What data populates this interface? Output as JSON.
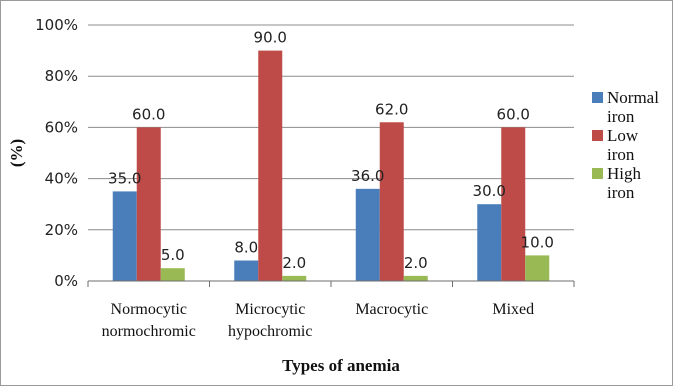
{
  "chart_data": {
    "type": "bar",
    "title": "",
    "xlabel": "Types of anemia",
    "ylabel": "(%)",
    "ylim": [
      0,
      100
    ],
    "yticks": [
      "0%",
      "20%",
      "40%",
      "60%",
      "80%",
      "100%"
    ],
    "ytick_values": [
      0,
      20,
      40,
      60,
      80,
      100
    ],
    "grid": true,
    "legend_position": "right",
    "categories": [
      [
        "Normocytic",
        "normochromic"
      ],
      [
        "Microcytic",
        "hypochromic"
      ],
      [
        "Macrocytic"
      ],
      [
        "Mixed"
      ]
    ],
    "series": [
      {
        "name": [
          "Normal",
          "iron"
        ],
        "color": "#4a7ebb",
        "values": [
          35.0,
          8.0,
          36.0,
          30.0
        ],
        "labels": [
          "35.0",
          "8.0",
          "36.0",
          "30.0"
        ]
      },
      {
        "name": [
          "Low",
          "iron"
        ],
        "color": "#be4b48",
        "values": [
          60.0,
          90.0,
          62.0,
          60.0
        ],
        "labels": [
          "60.0",
          "90.0",
          "62.0",
          "60.0"
        ]
      },
      {
        "name": [
          "High",
          "iron"
        ],
        "color": "#98b954",
        "values": [
          5.0,
          2.0,
          2.0,
          10.0
        ],
        "labels": [
          "5.0",
          "2.0",
          "2.0",
          "10.0"
        ]
      }
    ]
  }
}
